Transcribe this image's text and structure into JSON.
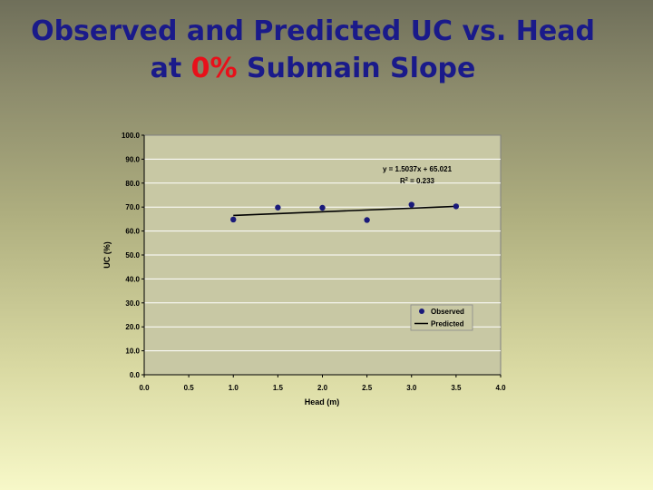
{
  "slide": {
    "title_line1": "Observed and Predicted UC vs. Head",
    "title_line2_pre": "at ",
    "title_line2_accent": "0%",
    "title_line2_post": " Submain Slope"
  },
  "colors": {
    "title": "#1a1a8a",
    "accent": "#e8101a",
    "plot_area": "#c8c8a4",
    "marker": "#1a1a7a",
    "trendline": "#000000"
  },
  "chart_data": {
    "type": "scatter",
    "xlabel": "Head (m)",
    "ylabel": "UC (%)",
    "xlim": [
      0.0,
      4.0
    ],
    "ylim": [
      0.0,
      100.0
    ],
    "x_ticks": [
      "0.0",
      "0.5",
      "1.0",
      "1.5",
      "2.0",
      "2.5",
      "3.0",
      "3.5",
      "4.0"
    ],
    "y_ticks": [
      "0.0",
      "10.0",
      "20.0",
      "30.0",
      "40.0",
      "50.0",
      "60.0",
      "70.0",
      "80.0",
      "90.0",
      "100.0"
    ],
    "grid": "horizontal",
    "legend_position": "bottom-right",
    "series": [
      {
        "name": "Observed",
        "kind": "markers",
        "x": [
          1.0,
          1.5,
          2.0,
          2.5,
          3.0,
          3.5
        ],
        "y": [
          64.8,
          69.8,
          69.7,
          64.6,
          71.0,
          70.3
        ]
      },
      {
        "name": "Predicted",
        "kind": "line",
        "x": [
          1.0,
          3.5
        ],
        "y": [
          66.5,
          70.3
        ]
      }
    ],
    "annotation_equation": "y = 1.5037x + 65.021",
    "annotation_r2_prefix": "R",
    "annotation_r2_sup": "2",
    "annotation_r2_value": " = 0.233"
  }
}
